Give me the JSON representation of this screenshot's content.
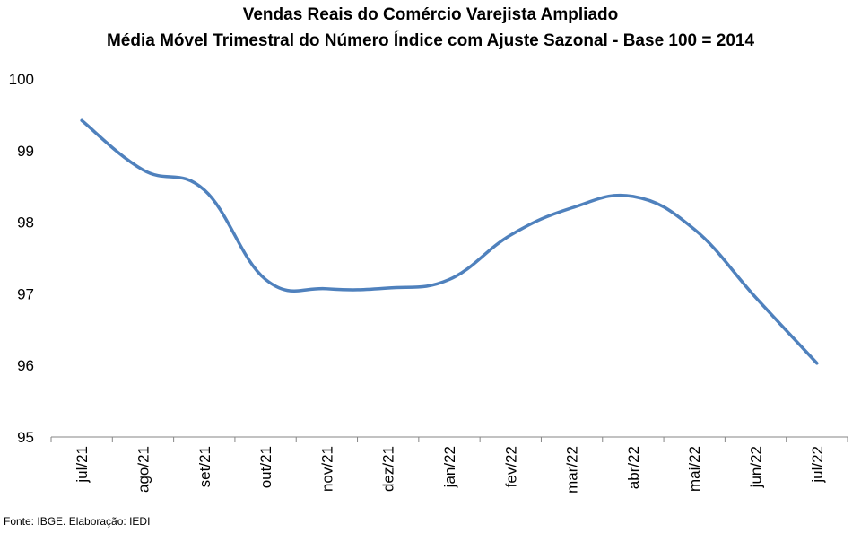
{
  "chart_data": {
    "type": "line",
    "title": "Vendas Reais do Comércio Varejista Ampliado",
    "subtitle": "Média Móvel Trimestral do Número Índice com Ajuste Sazonal - Base 100 = 2014",
    "categories": [
      "jul/21",
      "ago/21",
      "set/21",
      "out/21",
      "nov/21",
      "dez/21",
      "jan/22",
      "fev/22",
      "mar/22",
      "abr/22",
      "mai/22",
      "jun/22",
      "jul/22"
    ],
    "series": [
      {
        "values": [
          99.42,
          98.73,
          98.45,
          97.2,
          97.07,
          97.08,
          97.2,
          97.82,
          98.2,
          98.36,
          97.9,
          96.95,
          96.03
        ]
      }
    ],
    "ylim": [
      95,
      100
    ],
    "yticks": [
      "95",
      "96",
      "97",
      "98",
      "99",
      "100"
    ],
    "grid": false,
    "legend": "none",
    "line_color": "#4F81BD"
  },
  "source": "Fonte: IBGE. Elaboração: IEDI"
}
